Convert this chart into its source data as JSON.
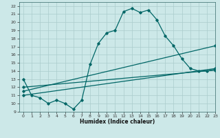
{
  "xlabel": "Humidex (Indice chaleur)",
  "background_color": "#cce8e8",
  "grid_color": "#aacccc",
  "line_color": "#006666",
  "xlim": [
    -0.5,
    23
  ],
  "ylim": [
    9,
    22.5
  ],
  "xticks": [
    0,
    1,
    2,
    3,
    4,
    5,
    6,
    7,
    8,
    9,
    10,
    11,
    12,
    13,
    14,
    15,
    16,
    17,
    18,
    19,
    20,
    21,
    22,
    23
  ],
  "yticks": [
    9,
    10,
    11,
    12,
    13,
    14,
    15,
    16,
    17,
    18,
    19,
    20,
    21,
    22
  ],
  "curve1_x": [
    0,
    1,
    2,
    3,
    4,
    5,
    6,
    7,
    8,
    9,
    10,
    11,
    12,
    13,
    14,
    15,
    16,
    17,
    18,
    19,
    20,
    21,
    22,
    23
  ],
  "curve1_y": [
    13,
    11,
    10.7,
    10,
    10.4,
    10,
    9.3,
    10.4,
    14.8,
    17.4,
    18.7,
    19.0,
    21.3,
    21.7,
    21.2,
    21.5,
    20.3,
    18.3,
    17.1,
    15.5,
    14.3,
    14.0,
    14.0,
    14.2
  ],
  "curve2_x": [
    0,
    23
  ],
  "curve2_y": [
    11.0,
    14.3
  ],
  "curve3_x": [
    0,
    23
  ],
  "curve3_y": [
    11.5,
    17.1
  ],
  "curve4_x": [
    0,
    23
  ],
  "curve4_y": [
    12.0,
    14.1
  ]
}
